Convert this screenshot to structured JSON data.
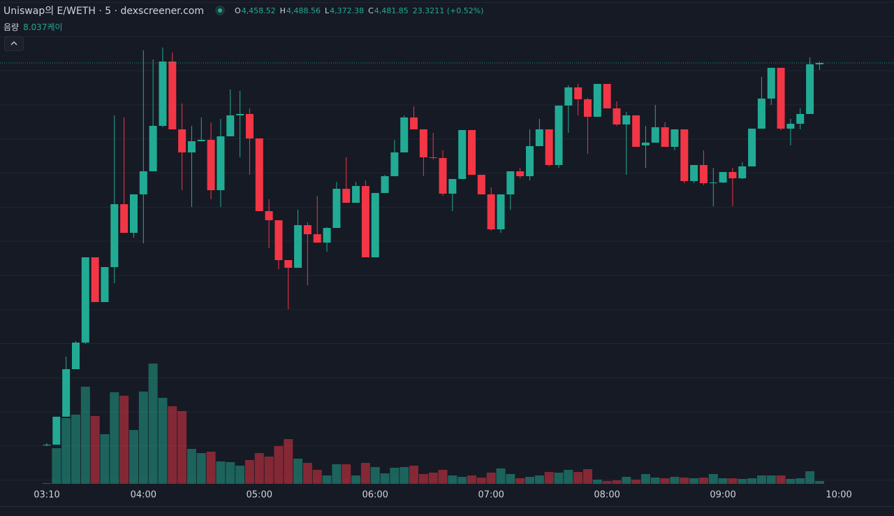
{
  "header": {
    "symbol": "Uniswap의 E/WETH · 5 · dexscreener.com",
    "ohlc": [
      {
        "key": "O",
        "value": "4,458.52"
      },
      {
        "key": "H",
        "value": "4,488.56"
      },
      {
        "key": "L",
        "value": "4,372.38"
      },
      {
        "key": "C",
        "value": "4,481.85"
      }
    ],
    "change": "23.3211 (+0.52%)",
    "volume_label": "음량",
    "volume_value": "8.037케이"
  },
  "chart_data": {
    "type": "candlestick",
    "up_color": "#22ab94",
    "down_color": "#f23645",
    "categories": [
      "03:10",
      null,
      null,
      null,
      null,
      null,
      null,
      null,
      null,
      null,
      "04:00",
      null,
      null,
      null,
      null,
      null,
      null,
      null,
      null,
      null,
      null,
      null,
      "05:00",
      null,
      null,
      null,
      null,
      null,
      null,
      null,
      null,
      null,
      null,
      null,
      "06:00",
      null,
      null,
      null,
      null,
      null,
      null,
      null,
      null,
      null,
      null,
      null,
      "07:00",
      null,
      null,
      null,
      null,
      null,
      null,
      null,
      null,
      null,
      null,
      null,
      "08:00",
      null,
      null,
      null,
      null,
      null,
      null,
      null,
      null,
      null,
      null,
      null,
      "09:00",
      null,
      null,
      null,
      null,
      null,
      null,
      null,
      null,
      null,
      null,
      null,
      "10:00"
    ],
    "open": [
      4372.8,
      4372.8,
      4380.8,
      4394.4,
      4402,
      4426.4,
      4413.6,
      4423.6,
      4441.6,
      4433.4,
      4444.4,
      4451,
      4464,
      4482.4,
      4463,
      4456.4,
      4459.6,
      4460,
      4445.6,
      4461,
      4467,
      4467.4,
      4460.4,
      4439.6,
      4437,
      4425.6,
      4423.4,
      4435.6,
      4433,
      4430.6,
      4434.8,
      4446,
      4442,
      4446.8,
      4426.4,
      4444.8,
      4449.6,
      4456.4,
      4466.4,
      4463,
      4455,
      4454.8,
      4444.6,
      4448.8,
      4462.8,
      4450,
      4444.4,
      4434.4,
      4444.4,
      4451,
      4449.6,
      4458.2,
      4463,
      4452.8,
      4469.8,
      4475,
      4471.6,
      4466.6,
      4476,
      4469,
      4464.4,
      4467,
      4458.4,
      4459.2,
      4463.6,
      4458,
      4463,
      4448.2,
      4452.8,
      4447.6,
      4447.8,
      4450.8,
      4449,
      4452.4,
      4463.2,
      4471.8,
      4480.6,
      4463.2,
      4464.6,
      4467.4,
      4481.6,
      null,
      null
    ],
    "high": [
      4373.2,
      4380.8,
      4398,
      4402.4,
      4426.4,
      4426.4,
      4423.6,
      4467,
      4466.4,
      4444.4,
      4485.6,
      4483,
      4486.4,
      4485,
      4470.4,
      4464,
      4466.4,
      4465,
      4466,
      4474.4,
      4474,
      4469,
      4460.4,
      4443,
      4437,
      4425.6,
      4440,
      4436.4,
      4444,
      4435,
      4448,
      4455,
      4448,
      4448.4,
      4444.8,
      4450,
      4460,
      4467,
      4469.6,
      4463,
      4462,
      4457,
      4448.8,
      4462.8,
      4462.8,
      4450,
      4446.4,
      4444.4,
      4451,
      4452,
      4463,
      4466,
      4463,
      4469.8,
      4475.6,
      4476,
      4472,
      4476,
      4476,
      4471,
      4468,
      4467,
      4464,
      4470,
      4465,
      4463,
      4463,
      4452.8,
      4457,
      4452,
      4450.8,
      4452,
      4453.6,
      4463.2,
      4478,
      4480.6,
      4480.6,
      4466,
      4469,
      4483.6,
      4482.4,
      null,
      null
    ],
    "low": [
      4372.4,
      4372.8,
      4380.8,
      4394.4,
      4401.6,
      4413.6,
      4413.6,
      4419,
      4433.4,
      4432,
      4430.4,
      4451,
      4463.6,
      4463,
      4445.6,
      4440.8,
      4459.6,
      4443,
      4440.8,
      4461,
      4455,
      4450,
      4439.6,
      4429,
      4423,
      4411.6,
      4423.4,
      4418.4,
      4430.6,
      4428,
      4434.8,
      4442,
      4442,
      4426.4,
      4426.4,
      4444.8,
      4449.6,
      4456.4,
      4463,
      4449.6,
      4454.4,
      4444,
      4439.6,
      4448.8,
      4450,
      4444.4,
      4434,
      4433.4,
      4440,
      4449,
      4448.4,
      4458.2,
      4452.4,
      4452,
      4462,
      4467,
      4456,
      4466.6,
      4469,
      4464,
      4450,
      4458,
      4452,
      4459.2,
      4458,
      4457,
      4447.6,
      4447.6,
      4447,
      4441,
      4447.6,
      4441,
      4448.8,
      4452.4,
      4463.2,
      4470,
      4462.8,
      4458.4,
      4463,
      4467.4,
      4480,
      null,
      null
    ],
    "close": [
      4372.8,
      4380.8,
      4394.4,
      4402,
      4426.4,
      4413.6,
      4423.6,
      4441.6,
      4433.4,
      4444.4,
      4451,
      4464,
      4482.4,
      4463,
      4456.4,
      4459.6,
      4460,
      4445.6,
      4461,
      4467,
      4467.4,
      4460.4,
      4439.6,
      4437,
      4425.6,
      4423.4,
      4435.6,
      4433,
      4430.6,
      4434.8,
      4446,
      4442,
      4446.8,
      4426.4,
      4444.8,
      4449.6,
      4456.4,
      4466.4,
      4463,
      4455,
      4454.8,
      4444.6,
      4448.8,
      4462.8,
      4450,
      4444.4,
      4434.4,
      4444.4,
      4451,
      4449.6,
      4458.2,
      4463,
      4452.8,
      4469.8,
      4475,
      4471.6,
      4466.6,
      4476,
      4469,
      4464.4,
      4467,
      4458,
      4459.2,
      4463.6,
      4458,
      4463,
      4448.2,
      4452.8,
      4447.6,
      4447.8,
      4450.8,
      4449,
      4452.4,
      4463.2,
      4471.8,
      4480.6,
      4463.2,
      4464.6,
      4467.4,
      4481.6,
      4482,
      null,
      null
    ],
    "volume": [
      2,
      102,
      188,
      198,
      278,
      194,
      142,
      262,
      252,
      154,
      264,
      344,
      246,
      222,
      208,
      100,
      88,
      92,
      64,
      62,
      52,
      68,
      88,
      78,
      108,
      128,
      72,
      60,
      40,
      24,
      56,
      56,
      24,
      60,
      48,
      30,
      46,
      48,
      52,
      28,
      32,
      40,
      24,
      20,
      24,
      18,
      32,
      44,
      28,
      16,
      20,
      24,
      34,
      32,
      40,
      34,
      42,
      12,
      8,
      10,
      20,
      12,
      28,
      18,
      16,
      20,
      18,
      16,
      18,
      28,
      16,
      16,
      14,
      16,
      24,
      24,
      24,
      14,
      16,
      36,
      8.037,
      null,
      null
    ],
    "ylim": [
      4361.6,
      4500
    ],
    "y2lim": [
      0,
      1384
    ],
    "grid": true
  }
}
